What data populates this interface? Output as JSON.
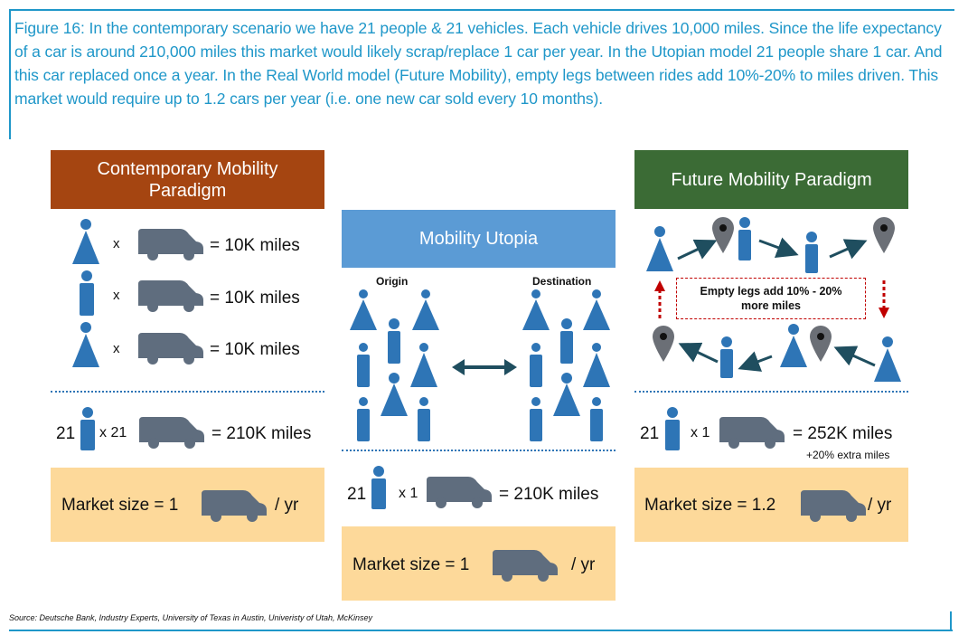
{
  "caption": "Figure 16: In the contemporary scenario we have 21 people & 21 vehicles. Each vehicle drives 10,000 miles. Since the life expectancy of a car is around 210,000 miles this market would likely scrap/replace 1 car per year. In the Utopian model 21 people share 1 car. And this car replaced once a year. In the Real World model (Future Mobility), empty legs between rides add 10%-20% to miles driven. This market would require up to 1.2 cars per year (i.e. one new car sold every 10 months).",
  "colors": {
    "caption_blue": "#1f97c9",
    "icon_blue": "#2e75b6",
    "car_gray": "#5f6d7e",
    "brown": "#a54511",
    "green": "#3b6b35",
    "light_blue": "#5b9bd5",
    "market_yellow": "#fdd99a",
    "arrow_teal": "#1f4e5f",
    "red": "#c00000"
  },
  "contemporary": {
    "title": "Contemporary Mobility Paradigm",
    "rows": [
      {
        "times": "x",
        "result": "= 10K miles"
      },
      {
        "times": "x",
        "result": "= 10K miles"
      },
      {
        "times": "x",
        "result": "= 10K miles"
      }
    ],
    "total": {
      "count": "21",
      "times": "x 21",
      "result": "= 210K miles"
    },
    "market": {
      "label": "Market size = 1",
      "unit": "/ yr"
    }
  },
  "utopia": {
    "title": "Mobility Utopia",
    "origin": "Origin",
    "destination": "Destination",
    "total": {
      "count": "21",
      "times": "x 1",
      "result": "= 210K miles"
    },
    "market": {
      "label": "Market size = 1",
      "unit": "/ yr"
    }
  },
  "future": {
    "title": "Future Mobility Paradigm",
    "note": "Empty legs add 10% - 20% more miles",
    "total": {
      "count": "21",
      "times": "x 1",
      "result": "= 252K miles",
      "extra": "+20% extra miles"
    },
    "market": {
      "label": "Market size = 1.2",
      "unit": "/ yr"
    }
  },
  "footer": "Source: Deutsche Bank, Industry Experts, University of Texas in Austin, Univeristy of Utah, McKinsey",
  "icons": [
    "person-female-icon",
    "person-male-icon",
    "car-icon",
    "location-pin-icon",
    "arrow-icon",
    "double-arrow-icon"
  ]
}
